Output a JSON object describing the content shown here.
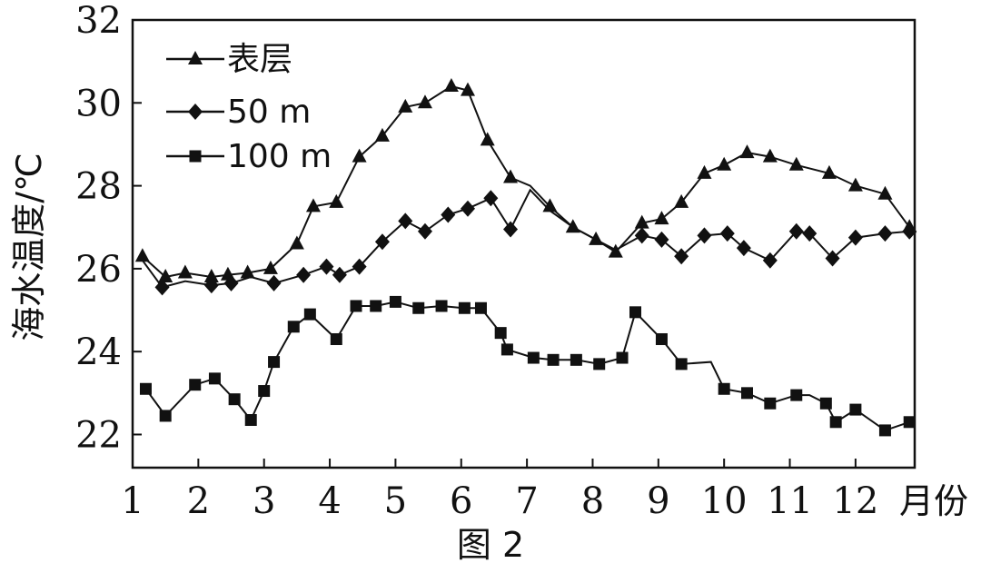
{
  "chart_data": {
    "type": "line",
    "caption": "图 2",
    "xlabel": "月份",
    "ylabel": "海水温度/℃",
    "xlim": [
      1,
      12.9
    ],
    "ylim": [
      21.2,
      32
    ],
    "x_ticks": [
      1,
      2,
      3,
      4,
      5,
      6,
      7,
      8,
      9,
      10,
      11,
      12
    ],
    "y_ticks": [
      22,
      24,
      26,
      28,
      30,
      32
    ],
    "legend_position": "top-left",
    "grid": false,
    "series": [
      {
        "name": "表层",
        "marker": "triangle",
        "line_x": [
          1.15,
          1.5,
          1.8,
          2.2,
          2.45,
          2.75,
          3.1,
          3.5,
          3.75,
          4.1,
          4.45,
          4.8,
          5.15,
          5.45,
          5.85,
          6.1,
          6.4,
          6.75,
          7.05,
          7.35,
          7.7,
          8.05,
          8.35,
          8.75,
          9.05,
          9.35,
          9.7,
          10.0,
          10.35,
          10.7,
          11.1,
          11.6,
          12.0,
          12.45,
          12.82
        ],
        "line_y": [
          26.3,
          25.8,
          25.9,
          25.8,
          25.85,
          25.9,
          26.0,
          26.6,
          27.5,
          27.6,
          28.7,
          29.2,
          29.9,
          30.0,
          30.4,
          30.3,
          29.1,
          28.2,
          28.0,
          27.5,
          27.0,
          26.7,
          26.4,
          27.1,
          27.2,
          27.6,
          28.3,
          28.5,
          28.8,
          28.7,
          28.5,
          28.3,
          28.0,
          27.8,
          27.0
        ],
        "x": [
          1.15,
          1.5,
          1.8,
          2.2,
          2.45,
          2.75,
          3.1,
          3.5,
          3.75,
          4.1,
          4.45,
          4.8,
          5.15,
          5.45,
          5.85,
          6.1,
          6.4,
          6.75,
          7.35,
          7.7,
          8.05,
          8.35,
          8.75,
          9.05,
          9.35,
          9.7,
          10.0,
          10.35,
          10.7,
          11.1,
          11.6,
          12.0,
          12.45,
          12.82
        ],
        "y": [
          26.3,
          25.8,
          25.9,
          25.8,
          25.85,
          25.9,
          26.0,
          26.6,
          27.5,
          27.6,
          28.7,
          29.2,
          29.9,
          30.0,
          30.4,
          30.3,
          29.1,
          28.2,
          27.5,
          27.0,
          26.7,
          26.4,
          27.1,
          27.2,
          27.6,
          28.3,
          28.5,
          28.8,
          28.7,
          28.5,
          28.3,
          28.0,
          27.8,
          27.0
        ]
      },
      {
        "name": "50 m",
        "marker": "diamond",
        "line_x": [
          1.15,
          1.45,
          1.8,
          2.2,
          2.5,
          2.8,
          3.15,
          3.6,
          3.95,
          4.15,
          4.45,
          4.8,
          5.15,
          5.45,
          5.8,
          6.1,
          6.45,
          6.75,
          7.05,
          7.35,
          7.7,
          8.05,
          8.35,
          8.75,
          9.05,
          9.35,
          9.7,
          10.05,
          10.3,
          10.7,
          11.1,
          11.3,
          11.65,
          12.0,
          12.45,
          12.82
        ],
        "line_y": [
          26.2,
          25.55,
          25.7,
          25.6,
          25.65,
          25.8,
          25.65,
          25.85,
          26.05,
          25.85,
          26.05,
          26.65,
          27.15,
          26.9,
          27.3,
          27.45,
          27.7,
          26.95,
          27.9,
          27.4,
          27.0,
          26.7,
          26.45,
          26.8,
          26.7,
          26.3,
          26.8,
          26.85,
          26.5,
          26.2,
          26.9,
          26.85,
          26.25,
          26.75,
          26.85,
          26.9
        ],
        "x": [
          1.45,
          2.2,
          2.5,
          3.15,
          3.6,
          3.95,
          4.15,
          4.45,
          4.8,
          5.15,
          5.45,
          5.8,
          6.1,
          6.45,
          6.75,
          8.75,
          9.05,
          9.35,
          9.7,
          10.05,
          10.3,
          10.7,
          11.1,
          11.3,
          11.65,
          12.0,
          12.45,
          12.82
        ],
        "y": [
          25.55,
          25.6,
          25.65,
          25.65,
          25.85,
          26.05,
          25.85,
          26.05,
          26.65,
          27.15,
          26.9,
          27.3,
          27.45,
          27.7,
          26.95,
          26.8,
          26.7,
          26.3,
          26.8,
          26.85,
          26.5,
          26.2,
          26.9,
          26.85,
          26.25,
          26.75,
          26.85,
          26.9
        ]
      },
      {
        "name": "100 m",
        "marker": "square",
        "line_x": [
          1.2,
          1.5,
          1.95,
          2.25,
          2.55,
          2.8,
          3.0,
          3.15,
          3.45,
          3.7,
          4.1,
          4.4,
          4.7,
          5.0,
          5.35,
          5.7,
          6.05,
          6.3,
          6.6,
          6.7,
          7.1,
          7.4,
          7.75,
          8.1,
          8.45,
          8.65,
          9.05,
          9.35,
          9.8,
          10.0,
          10.35,
          10.7,
          11.1,
          11.3,
          11.55,
          11.7,
          12.0,
          12.45,
          12.82
        ],
        "line_y": [
          23.1,
          22.45,
          23.2,
          23.35,
          22.85,
          22.35,
          23.05,
          23.75,
          24.6,
          24.9,
          24.3,
          25.1,
          25.1,
          25.2,
          25.05,
          25.1,
          25.05,
          25.05,
          24.45,
          24.05,
          23.85,
          23.8,
          23.8,
          23.7,
          23.85,
          24.95,
          24.3,
          23.7,
          23.75,
          23.1,
          23.0,
          22.75,
          22.95,
          22.95,
          22.75,
          22.3,
          22.6,
          22.1,
          22.3
        ],
        "x": [
          1.2,
          1.5,
          1.95,
          2.25,
          2.55,
          2.8,
          3.0,
          3.15,
          3.45,
          3.7,
          4.1,
          4.4,
          4.7,
          5.0,
          5.35,
          5.7,
          6.05,
          6.3,
          6.6,
          6.7,
          7.1,
          7.4,
          7.75,
          8.1,
          8.45,
          8.65,
          9.05,
          9.35,
          10.0,
          10.35,
          10.7,
          11.1,
          11.55,
          11.7,
          12.0,
          12.45,
          12.82
        ],
        "y": [
          23.1,
          22.45,
          23.2,
          23.35,
          22.85,
          22.35,
          23.05,
          23.75,
          24.6,
          24.9,
          24.3,
          25.1,
          25.1,
          25.2,
          25.05,
          25.1,
          25.05,
          25.05,
          24.45,
          24.05,
          23.85,
          23.8,
          23.8,
          23.7,
          23.85,
          24.95,
          24.3,
          23.7,
          23.1,
          23.0,
          22.75,
          22.95,
          22.75,
          22.3,
          22.6,
          22.1,
          22.3
        ]
      }
    ]
  }
}
